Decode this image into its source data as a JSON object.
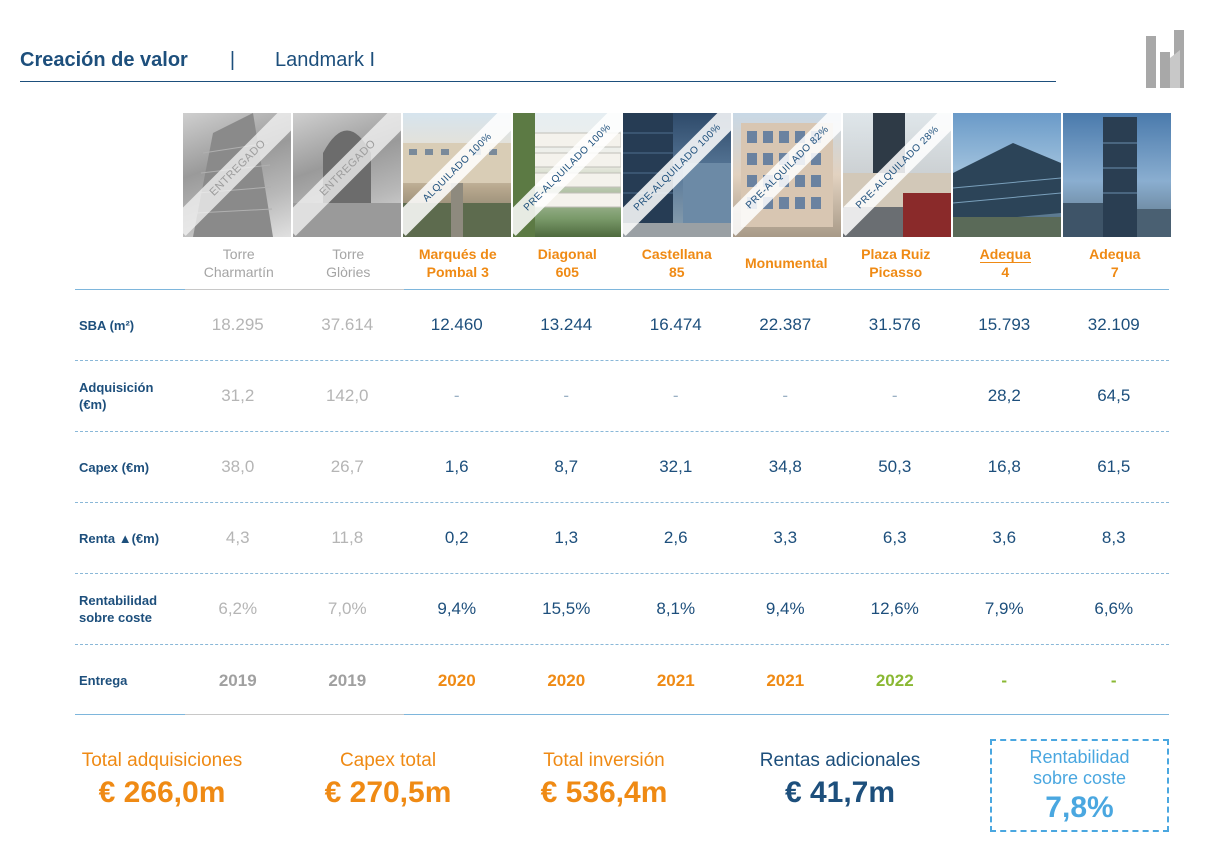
{
  "header": {
    "title": "Creación de valor",
    "separator": "|",
    "subtitle": "Landmark I"
  },
  "photos": [
    {
      "ribbon": "ENTREGADO",
      "style": "grey"
    },
    {
      "ribbon": "ENTREGADO",
      "style": "grey"
    },
    {
      "ribbon": "ALQUILADO 100%",
      "style": "color"
    },
    {
      "ribbon": "PRE-ALQUILADO 100%",
      "style": "color"
    },
    {
      "ribbon": "PRE-ALQUILADO 100%",
      "style": "color"
    },
    {
      "ribbon": "PRE-ALQUILADO 82%",
      "style": "color"
    },
    {
      "ribbon": "PRE-ALQUILADO 28%",
      "style": "color"
    },
    {
      "ribbon": "",
      "style": "color"
    },
    {
      "ribbon": "",
      "style": "color"
    }
  ],
  "columns": [
    {
      "line1": "Torre",
      "line2": "Charmartín"
    },
    {
      "line1": "Torre",
      "line2": "Glòries"
    },
    {
      "line1": "Marqués de",
      "line2": "Pombal 3"
    },
    {
      "line1": "Diagonal",
      "line2": "605"
    },
    {
      "line1": "Castellana",
      "line2": "85"
    },
    {
      "line1": "Monumental",
      "line2": ""
    },
    {
      "line1": "Plaza Ruiz",
      "line2": "Picasso"
    },
    {
      "line1": "Adequa",
      "line2": "4"
    },
    {
      "line1": "Adequa",
      "line2": "7"
    }
  ],
  "rows": [
    {
      "label1": "SBA (m²)",
      "label2": "",
      "values": [
        "18.295",
        "37.614",
        "12.460",
        "13.244",
        "16.474",
        "22.387",
        "31.576",
        "15.793",
        "32.109"
      ]
    },
    {
      "label1": "Adquisición",
      "label2": "(€m)",
      "values": [
        "31,2",
        "142,0",
        "-",
        "-",
        "-",
        "-",
        "-",
        "28,2",
        "64,5"
      ]
    },
    {
      "label1": "Capex (€m)",
      "label2": "",
      "values": [
        "38,0",
        "26,7",
        "1,6",
        "8,7",
        "32,1",
        "34,8",
        "50,3",
        "16,8",
        "61,5"
      ]
    },
    {
      "label1": "Renta ▲(€m)",
      "label2": "",
      "values": [
        "4,3",
        "11,8",
        "0,2",
        "1,3",
        "2,6",
        "3,3",
        "6,3",
        "3,6",
        "8,3"
      ]
    },
    {
      "label1": "Rentabilidad",
      "label2": "sobre coste",
      "values": [
        "6,2%",
        "7,0%",
        "9,4%",
        "15,5%",
        "8,1%",
        "9,4%",
        "12,6%",
        "7,9%",
        "6,6%"
      ]
    },
    {
      "label1": "Entrega",
      "label2": "",
      "values": [
        "2019",
        "2019",
        "2020",
        "2020",
        "2021",
        "2021",
        "2022",
        "-",
        "-"
      ]
    }
  ],
  "totals": {
    "adquisiciones": {
      "label": "Total adquisiciones",
      "value": "€ 266,0m"
    },
    "capex": {
      "label": "Capex total",
      "value": "€ 270,5m"
    },
    "inversion": {
      "label": "Total inversión",
      "value": "€ 536,4m"
    },
    "rentas": {
      "label": "Rentas adicionales",
      "value": "€ 41,7m"
    },
    "rentabilidad": {
      "label1": "Rentabilidad",
      "label2": "sobre coste",
      "value": "7,8%"
    }
  },
  "colors": {
    "navy": "#1d4f7c",
    "orange": "#ef8a14",
    "green": "#8ab833",
    "grey": "#a5a5a5",
    "lightblue": "#4aa7e0"
  }
}
